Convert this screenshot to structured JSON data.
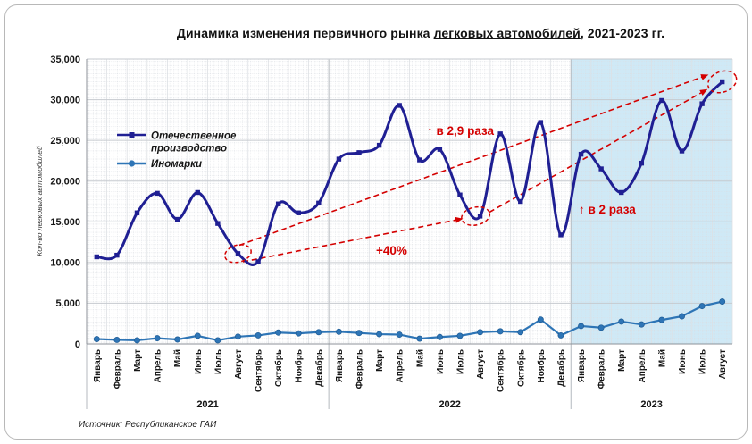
{
  "title": {
    "part1": "Динамика изменения первичного рынка ",
    "underlined": "легковых автомобилей",
    "part2": ", 2021-2023 гг."
  },
  "legend": {
    "items": [
      {
        "lines": [
          "Отечественное",
          "производство"
        ],
        "color": "#1f1f93",
        "marker": "square"
      },
      {
        "lines": [
          "Иномарки"
        ],
        "color": "#2e75b6",
        "marker": "circle"
      }
    ]
  },
  "y_axis": {
    "title": "Кол-во легковых автомобилей"
  },
  "source": "Источник: Республиканское ГАИ",
  "chart_data": {
    "type": "line",
    "title": "Динамика изменения первичного рынка легковых автомобилей, 2021-2023 гг.",
    "y_axis_label": "Кол-во легковых автомобилей",
    "ylim": [
      0,
      35000
    ],
    "y_tick_step": 5000,
    "y_ticks": [
      "0",
      "5,000",
      "10,000",
      "15,000",
      "20,000",
      "25,000",
      "30,000",
      "35,000"
    ],
    "grid": true,
    "legend_position": "inside-top-left",
    "x_groups": [
      {
        "year": "2021",
        "months": [
          "Январь",
          "Февраль",
          "Март",
          "Апрель",
          "Май",
          "Июнь",
          "Июль",
          "Август",
          "Сентябрь",
          "Октябрь",
          "Ноябрь",
          "Декабрь"
        ]
      },
      {
        "year": "2022",
        "months": [
          "Январь",
          "Февраль",
          "Март",
          "Апрель",
          "Май",
          "Июнь",
          "Июль",
          "Август",
          "Сентябрь",
          "Октябрь",
          "Ноябрь",
          "Декабрь"
        ]
      },
      {
        "year": "2023",
        "months": [
          "Январь",
          "Февраль",
          "Март",
          "Апрель",
          "Май",
          "Июнь",
          "Июль",
          "Август"
        ]
      }
    ],
    "series": [
      {
        "name": "Отечественное производство",
        "color": "#1f1f93",
        "marker": "square",
        "smoothed": true,
        "values": [
          10700,
          10900,
          16100,
          18500,
          15300,
          18600,
          14800,
          11100,
          10100,
          17200,
          16100,
          17300,
          22700,
          23500,
          24400,
          29300,
          22600,
          23900,
          18300,
          15700,
          25800,
          17500,
          27200,
          13400,
          23300,
          21500,
          18600,
          22200,
          29900,
          23700,
          29500,
          32200
        ]
      },
      {
        "name": "Иномарки",
        "color": "#2e75b6",
        "marker": "circle",
        "smoothed": false,
        "values": [
          600,
          500,
          450,
          700,
          550,
          1000,
          450,
          900,
          1050,
          1400,
          1300,
          1450,
          1500,
          1350,
          1200,
          1150,
          650,
          850,
          1000,
          1450,
          1550,
          1450,
          3000,
          1050,
          2200,
          2000,
          2750,
          2400,
          2950,
          3400,
          4650,
          5200
        ]
      }
    ],
    "highlight_region": {
      "year": "2023",
      "color": "#cfe9f6",
      "start_index": 24,
      "end_index": 31
    },
    "annotations": [
      {
        "type": "arrow",
        "label": "↑ в 2,9 раза",
        "from_index": 7,
        "to_index": 31
      },
      {
        "type": "arrow",
        "label": "+40%",
        "from_index": 7,
        "to_index": 19
      },
      {
        "type": "arrow",
        "label": "↑ в 2 раза",
        "from_index": 19,
        "to_index": 31
      },
      {
        "type": "ellipse",
        "index": 7
      },
      {
        "type": "ellipse",
        "index": 19
      },
      {
        "type": "ellipse",
        "index": 31
      }
    ]
  }
}
